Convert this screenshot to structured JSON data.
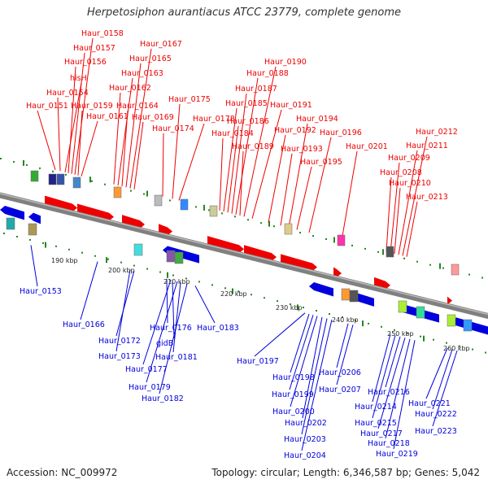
{
  "title": "Herpetosiphon aurantiacus ATCC 23779, complete genome",
  "accession": "Accession: NC_009972",
  "summary": "Topology: circular; Length: 6,346,587 bp; Genes: 5,042",
  "colors": {
    "forward": "#ee0000",
    "reverse": "#0000dd",
    "backbone": "#808080",
    "tick": "#228822"
  },
  "kbp_labels": [
    "190 kbp",
    "200 kbp",
    "210 kbp",
    "220 kbp",
    "230 kbp",
    "240 kbp",
    "250 kbp",
    "260 kbp"
  ],
  "forward_genes": [
    "Haur_0151",
    "Haur_0154",
    "hisH",
    "Haur_0156",
    "Haur_0157",
    "Haur_0158",
    "Haur_0159",
    "Haur_0161",
    "Haur_0162",
    "Haur_0163",
    "Haur_0164",
    "Haur_0165",
    "Haur_0167",
    "Haur_0169",
    "Haur_0174",
    "Haur_0175",
    "Haur_0178",
    "Haur_0184",
    "Haur_0185",
    "Haur_0186",
    "Haur_0187",
    "Haur_0188",
    "Haur_0189",
    "Haur_0190",
    "Haur_0191",
    "Haur_0192",
    "Haur_0193",
    "Haur_0194",
    "Haur_0195",
    "Haur_0196",
    "Haur_0201",
    "Haur_0208",
    "Haur_0209",
    "Haur_0210",
    "Haur_0211",
    "Haur_0212",
    "Haur_0213"
  ],
  "reverse_genes": [
    "Haur_0153",
    "Haur_0166",
    "Haur_0172",
    "Haur_0173",
    "Haur_0176",
    "gidB",
    "Haur_0177",
    "Haur_0179",
    "Haur_0181",
    "Haur_0182",
    "Haur_0183",
    "Haur_0197",
    "Haur_0198",
    "Haur_0199",
    "Haur_0200",
    "Haur_0202",
    "Haur_0203",
    "Haur_0204",
    "Haur_0206",
    "Haur_0207",
    "Haur_0214",
    "Haur_0215",
    "Haur_0216",
    "Haur_0217",
    "Haur_0218",
    "Haur_0219",
    "Haur_0221",
    "Haur_0222",
    "Haur_0223"
  ]
}
